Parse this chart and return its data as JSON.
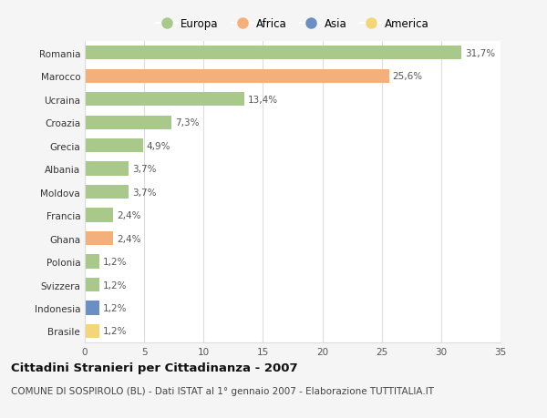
{
  "categories": [
    "Romania",
    "Marocco",
    "Ucraina",
    "Croazia",
    "Grecia",
    "Albania",
    "Moldova",
    "Francia",
    "Ghana",
    "Polonia",
    "Svizzera",
    "Indonesia",
    "Brasile"
  ],
  "values": [
    31.7,
    25.6,
    13.4,
    7.3,
    4.9,
    3.7,
    3.7,
    2.4,
    2.4,
    1.2,
    1.2,
    1.2,
    1.2
  ],
  "labels": [
    "31,7%",
    "25,6%",
    "13,4%",
    "7,3%",
    "4,9%",
    "3,7%",
    "3,7%",
    "2,4%",
    "2,4%",
    "1,2%",
    "1,2%",
    "1,2%",
    "1,2%"
  ],
  "continent": [
    "Europa",
    "Africa",
    "Europa",
    "Europa",
    "Europa",
    "Europa",
    "Europa",
    "Europa",
    "Africa",
    "Europa",
    "Europa",
    "Asia",
    "America"
  ],
  "colors": {
    "Europa": "#a8c98a",
    "Africa": "#f4b07a",
    "Asia": "#6b8fc4",
    "America": "#f5d57a"
  },
  "legend_order": [
    "Europa",
    "Africa",
    "Asia",
    "America"
  ],
  "title": "Cittadini Stranieri per Cittadinanza - 2007",
  "subtitle": "COMUNE DI SOSPIROLO (BL) - Dati ISTAT al 1° gennaio 2007 - Elaborazione TUTTITALIA.IT",
  "xlim": [
    0,
    35
  ],
  "xticks": [
    0,
    5,
    10,
    15,
    20,
    25,
    30,
    35
  ],
  "background_color": "#f5f5f5",
  "bar_background": "#ffffff",
  "grid_color": "#dddddd",
  "title_fontsize": 9.5,
  "subtitle_fontsize": 7.5,
  "label_fontsize": 7.5,
  "tick_fontsize": 7.5,
  "legend_fontsize": 8.5
}
